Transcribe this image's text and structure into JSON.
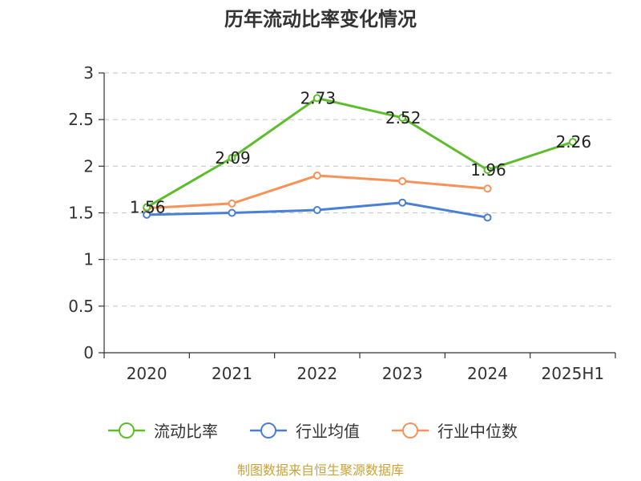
{
  "chart_data": {
    "type": "line",
    "title": "历年流动比率变化情况",
    "categories": [
      "2020",
      "2021",
      "2022",
      "2023",
      "2024",
      "2025H1"
    ],
    "ylim": [
      0,
      3
    ],
    "yticks": [
      "0",
      "0.5",
      "1",
      "1.5",
      "2",
      "2.5",
      "3"
    ],
    "grid": true,
    "legend_position": "bottom",
    "series": [
      {
        "name": "流动比率",
        "color": "#5dbd2d",
        "values": [
          1.56,
          2.09,
          2.73,
          2.52,
          1.96,
          2.26
        ],
        "labels": [
          "1.56",
          "2.09",
          "2.73",
          "2.52",
          "1.96",
          "2.26"
        ]
      },
      {
        "name": "行业均值",
        "color": "#4a7fd6",
        "values": [
          1.48,
          1.5,
          1.53,
          1.61,
          1.45,
          null
        ]
      },
      {
        "name": "行业中位数",
        "color": "#f5935a",
        "values": [
          1.55,
          1.6,
          1.9,
          1.84,
          1.76,
          null
        ]
      }
    ]
  },
  "source_text": "制图数据来自恒生聚源数据库"
}
